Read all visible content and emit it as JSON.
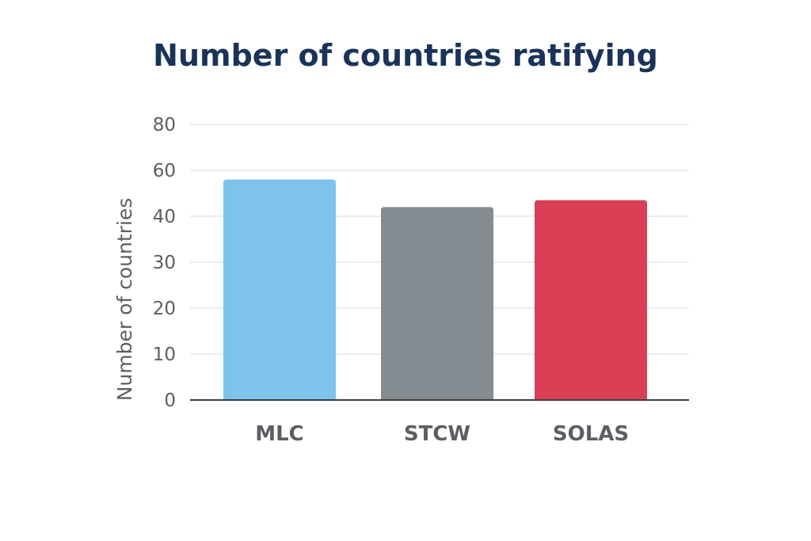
{
  "chart_data": {
    "type": "bar",
    "title": "Number of countries ratifying",
    "xlabel": "",
    "ylabel": "Number of countries",
    "categories": [
      "MLC",
      "STCW",
      "SOLAS"
    ],
    "values": [
      56,
      44,
      47
    ],
    "colors": [
      "#7dc3ec",
      "#858c91",
      "#d93f55"
    ],
    "yticks": [
      0,
      10,
      20,
      30,
      40,
      60,
      80
    ],
    "grid": true,
    "legend": "none"
  }
}
